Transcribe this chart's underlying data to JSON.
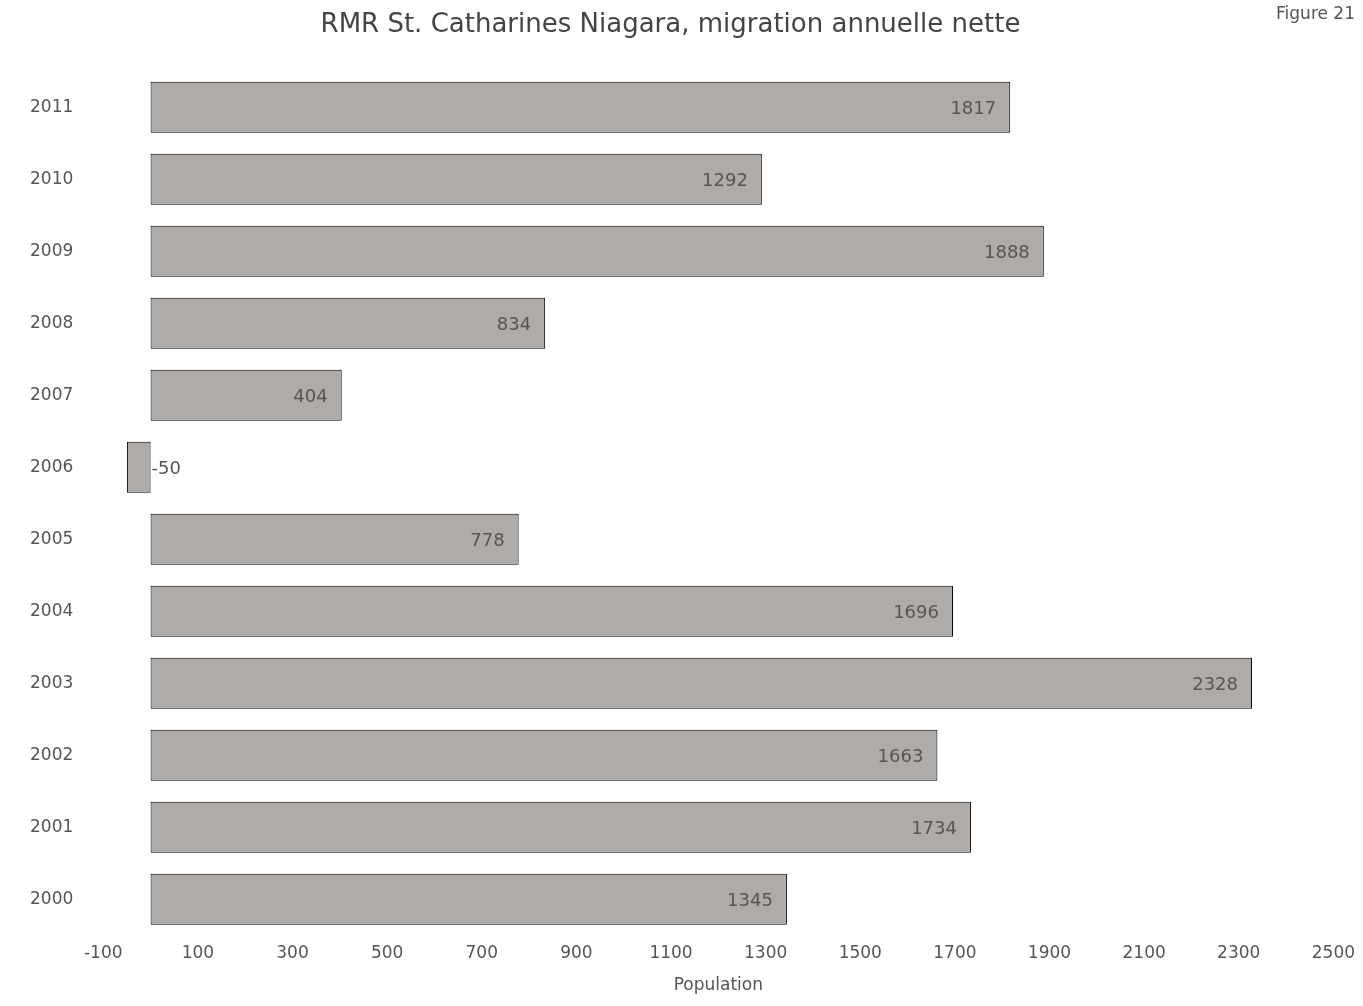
{
  "chart_data": {
    "type": "bar",
    "orientation": "horizontal",
    "title": "RMR St. Catharines Niagara, migration annuelle nette",
    "xlabel": "Population",
    "annotations": [
      "Figure 21"
    ],
    "categories": [
      "2011",
      "2010",
      "2009",
      "2008",
      "2007",
      "2006",
      "2005",
      "2004",
      "2003",
      "2002",
      "2001",
      "2000"
    ],
    "values": [
      1817,
      1292,
      1888,
      834,
      404,
      -50,
      778,
      1696,
      2328,
      1663,
      1734,
      1345
    ],
    "color": "#afaba9",
    "xlim": [
      -100,
      2500
    ],
    "xticks": [
      -100,
      100,
      300,
      500,
      700,
      900,
      1100,
      1300,
      1500,
      1700,
      1900,
      2100,
      2300,
      2500
    ],
    "grid": false,
    "legend": false,
    "data_labels": true
  }
}
